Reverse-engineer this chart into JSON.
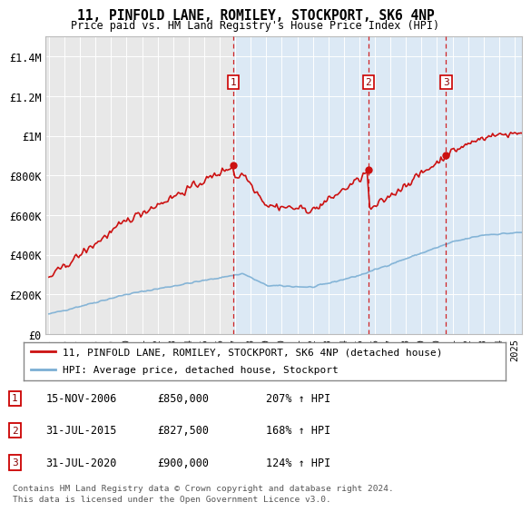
{
  "title": "11, PINFOLD LANE, ROMILEY, STOCKPORT, SK6 4NP",
  "subtitle": "Price paid vs. HM Land Registry's House Price Index (HPI)",
  "bg_color_left": "#e8e8e8",
  "bg_color_right": "#dce9f5",
  "ylim": [
    0,
    1500000
  ],
  "yticks": [
    0,
    200000,
    400000,
    600000,
    800000,
    1000000,
    1200000,
    1400000
  ],
  "ytick_labels": [
    "£0",
    "£200K",
    "£400K",
    "£600K",
    "£800K",
    "£1M",
    "£1.2M",
    "£1.4M"
  ],
  "transactions": [
    {
      "date_label": "15-NOV-2006",
      "x": 2006.875,
      "price": 850000,
      "hpi_pct": "207%",
      "marker": "1"
    },
    {
      "date_label": "31-JUL-2015",
      "x": 2015.583,
      "price": 827500,
      "hpi_pct": "168%",
      "marker": "2"
    },
    {
      "date_label": "31-JUL-2020",
      "x": 2020.583,
      "price": 900000,
      "hpi_pct": "124%",
      "marker": "3"
    }
  ],
  "legend_property": "11, PINFOLD LANE, ROMILEY, STOCKPORT, SK6 4NP (detached house)",
  "legend_hpi": "HPI: Average price, detached house, Stockport",
  "footer1": "Contains HM Land Registry data © Crown copyright and database right 2024.",
  "footer2": "This data is licensed under the Open Government Licence v3.0.",
  "table_rows": [
    [
      "1",
      "15-NOV-2006",
      "£850,000",
      "207% ↑ HPI"
    ],
    [
      "2",
      "31-JUL-2015",
      "£827,500",
      "168% ↑ HPI"
    ],
    [
      "3",
      "31-JUL-2020",
      "£900,000",
      "124% ↑ HPI"
    ]
  ],
  "xlim": [
    1995.0,
    2025.5
  ],
  "xticks": [
    1995,
    1996,
    1997,
    1998,
    1999,
    2000,
    2001,
    2002,
    2003,
    2004,
    2005,
    2006,
    2007,
    2008,
    2009,
    2010,
    2011,
    2012,
    2013,
    2014,
    2015,
    2016,
    2017,
    2018,
    2019,
    2020,
    2021,
    2022,
    2023,
    2024,
    2025
  ]
}
